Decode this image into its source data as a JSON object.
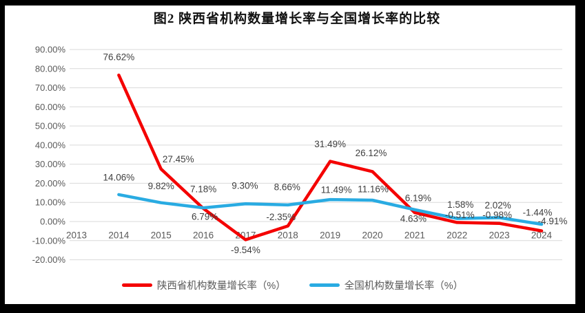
{
  "figure": {
    "title": "图2 陕西省机构数量增长率与全国增长率的比较"
  },
  "colors": {
    "shaanxi_line": "#f40000",
    "national_line": "#29abe2",
    "gridline": "#d9d9d9",
    "axis_text": "#595959",
    "label_text": "#404040",
    "frame": "#000000",
    "background": "#ffffff"
  },
  "chart_data": {
    "type": "line",
    "title": "图2 陕西省机构数量增长率与全国增长率的比较",
    "x": [
      2013,
      2014,
      2015,
      2016,
      2017,
      2018,
      2019,
      2020,
      2021,
      2022,
      2023,
      2024
    ],
    "series": [
      {
        "name": "陕西省机构数量增长率（%）",
        "color": "#f40000",
        "values": [
          null,
          76.62,
          27.45,
          6.79,
          -9.54,
          -2.35,
          31.49,
          26.12,
          4.63,
          -0.51,
          -0.98,
          -4.91
        ]
      },
      {
        "name": "全国机构数量增长率（%）",
        "color": "#29abe2",
        "values": [
          null,
          14.06,
          9.82,
          7.18,
          9.3,
          8.66,
          11.49,
          11.16,
          6.19,
          1.58,
          2.02,
          -1.44
        ]
      }
    ],
    "xlabel": "",
    "ylabel": "",
    "ylim": [
      -20,
      90
    ],
    "ytick_step": 10,
    "ytick_format": "percent_2dp",
    "grid": true,
    "data_labels": true,
    "legend_position": "bottom"
  }
}
